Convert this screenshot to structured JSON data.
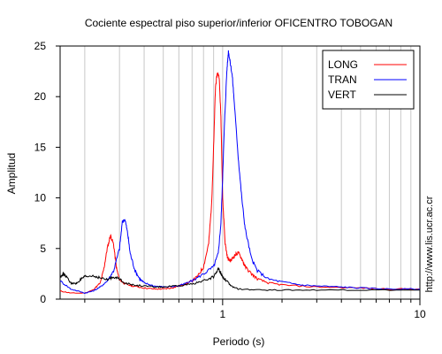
{
  "chart_data": {
    "type": "line",
    "title": "Cociente espectral piso superior/inferior OFICENTRO TOBOGAN",
    "xlabel": "Periodo (s)",
    "ylabel": "Amplitud",
    "xscale": "log",
    "xlim": [
      0.15,
      10
    ],
    "ylim": [
      0,
      25
    ],
    "x_ticks": [
      1,
      10
    ],
    "x_tick_labels": [
      "1",
      "10"
    ],
    "y_ticks": [
      0,
      5,
      10,
      15,
      20,
      25
    ],
    "y_tick_labels": [
      "0",
      "5",
      "10",
      "15",
      "20",
      "25"
    ],
    "grid": "vertical minor lines",
    "legend_position": "top-right",
    "side_note": "http://www.lis.ucr.ac.cr",
    "series": [
      {
        "name": "LONG",
        "color": "#ff0000",
        "points": [
          [
            0.15,
            0.8
          ],
          [
            0.17,
            0.6
          ],
          [
            0.2,
            0.6
          ],
          [
            0.22,
            0.9
          ],
          [
            0.24,
            1.6
          ],
          [
            0.25,
            3.0
          ],
          [
            0.26,
            5.0
          ],
          [
            0.27,
            6.3
          ],
          [
            0.28,
            5.4
          ],
          [
            0.29,
            3.0
          ],
          [
            0.3,
            1.9
          ],
          [
            0.32,
            1.5
          ],
          [
            0.35,
            1.3
          ],
          [
            0.4,
            1.1
          ],
          [
            0.45,
            1.0
          ],
          [
            0.5,
            1.0
          ],
          [
            0.55,
            1.1
          ],
          [
            0.6,
            1.3
          ],
          [
            0.65,
            1.5
          ],
          [
            0.7,
            1.8
          ],
          [
            0.75,
            2.3
          ],
          [
            0.8,
            3.2
          ],
          [
            0.85,
            5.5
          ],
          [
            0.88,
            9.5
          ],
          [
            0.9,
            15.0
          ],
          [
            0.92,
            21.0
          ],
          [
            0.94,
            22.3
          ],
          [
            0.96,
            22.0
          ],
          [
            0.98,
            18.0
          ],
          [
            1.0,
            10.0
          ],
          [
            1.03,
            5.5
          ],
          [
            1.06,
            4.0
          ],
          [
            1.1,
            3.8
          ],
          [
            1.15,
            4.3
          ],
          [
            1.2,
            4.6
          ],
          [
            1.25,
            4.0
          ],
          [
            1.3,
            3.2
          ],
          [
            1.4,
            2.5
          ],
          [
            1.5,
            2.0
          ],
          [
            1.7,
            1.6
          ],
          [
            2.0,
            1.4
          ],
          [
            3.0,
            1.2
          ],
          [
            5.0,
            1.1
          ],
          [
            7.0,
            1.0
          ],
          [
            10.0,
            1.0
          ]
        ]
      },
      {
        "name": "TRAN",
        "color": "#0000ff",
        "points": [
          [
            0.15,
            1.8
          ],
          [
            0.17,
            1.0
          ],
          [
            0.2,
            0.6
          ],
          [
            0.22,
            0.8
          ],
          [
            0.24,
            1.2
          ],
          [
            0.26,
            1.8
          ],
          [
            0.28,
            2.8
          ],
          [
            0.3,
            5.0
          ],
          [
            0.31,
            7.6
          ],
          [
            0.32,
            7.9
          ],
          [
            0.33,
            6.5
          ],
          [
            0.34,
            4.5
          ],
          [
            0.36,
            2.8
          ],
          [
            0.38,
            2.0
          ],
          [
            0.4,
            1.6
          ],
          [
            0.45,
            1.3
          ],
          [
            0.5,
            1.2
          ],
          [
            0.6,
            1.3
          ],
          [
            0.7,
            1.8
          ],
          [
            0.8,
            2.5
          ],
          [
            0.9,
            3.2
          ],
          [
            0.95,
            4.5
          ],
          [
            0.98,
            7.5
          ],
          [
            1.0,
            12.0
          ],
          [
            1.02,
            17.0
          ],
          [
            1.05,
            22.5
          ],
          [
            1.07,
            24.5
          ],
          [
            1.09,
            23.5
          ],
          [
            1.12,
            22.0
          ],
          [
            1.15,
            19.0
          ],
          [
            1.2,
            14.0
          ],
          [
            1.25,
            10.0
          ],
          [
            1.3,
            7.0
          ],
          [
            1.4,
            4.0
          ],
          [
            1.5,
            2.8
          ],
          [
            1.7,
            2.0
          ],
          [
            2.0,
            1.7
          ],
          [
            2.5,
            1.4
          ],
          [
            3.0,
            1.3
          ],
          [
            4.0,
            1.2
          ],
          [
            5.0,
            1.1
          ],
          [
            7.0,
            1.0
          ],
          [
            10.0,
            1.0
          ]
        ]
      },
      {
        "name": "VERT",
        "color": "#000000",
        "points": [
          [
            0.15,
            2.2
          ],
          [
            0.155,
            2.5
          ],
          [
            0.16,
            2.3
          ],
          [
            0.17,
            1.6
          ],
          [
            0.18,
            1.5
          ],
          [
            0.19,
            1.9
          ],
          [
            0.2,
            2.2
          ],
          [
            0.22,
            2.3
          ],
          [
            0.24,
            2.1
          ],
          [
            0.26,
            1.9
          ],
          [
            0.28,
            2.2
          ],
          [
            0.3,
            2.0
          ],
          [
            0.32,
            1.6
          ],
          [
            0.35,
            1.4
          ],
          [
            0.4,
            1.3
          ],
          [
            0.45,
            1.2
          ],
          [
            0.5,
            1.2
          ],
          [
            0.6,
            1.3
          ],
          [
            0.7,
            1.5
          ],
          [
            0.8,
            1.8
          ],
          [
            0.9,
            2.2
          ],
          [
            0.95,
            3.0
          ],
          [
            0.98,
            2.6
          ],
          [
            1.0,
            2.2
          ],
          [
            1.05,
            1.8
          ],
          [
            1.1,
            1.3
          ],
          [
            1.2,
            1.0
          ],
          [
            1.5,
            0.9
          ],
          [
            2.0,
            0.9
          ],
          [
            3.0,
            0.9
          ],
          [
            5.0,
            0.9
          ],
          [
            10.0,
            0.9
          ]
        ]
      }
    ]
  }
}
